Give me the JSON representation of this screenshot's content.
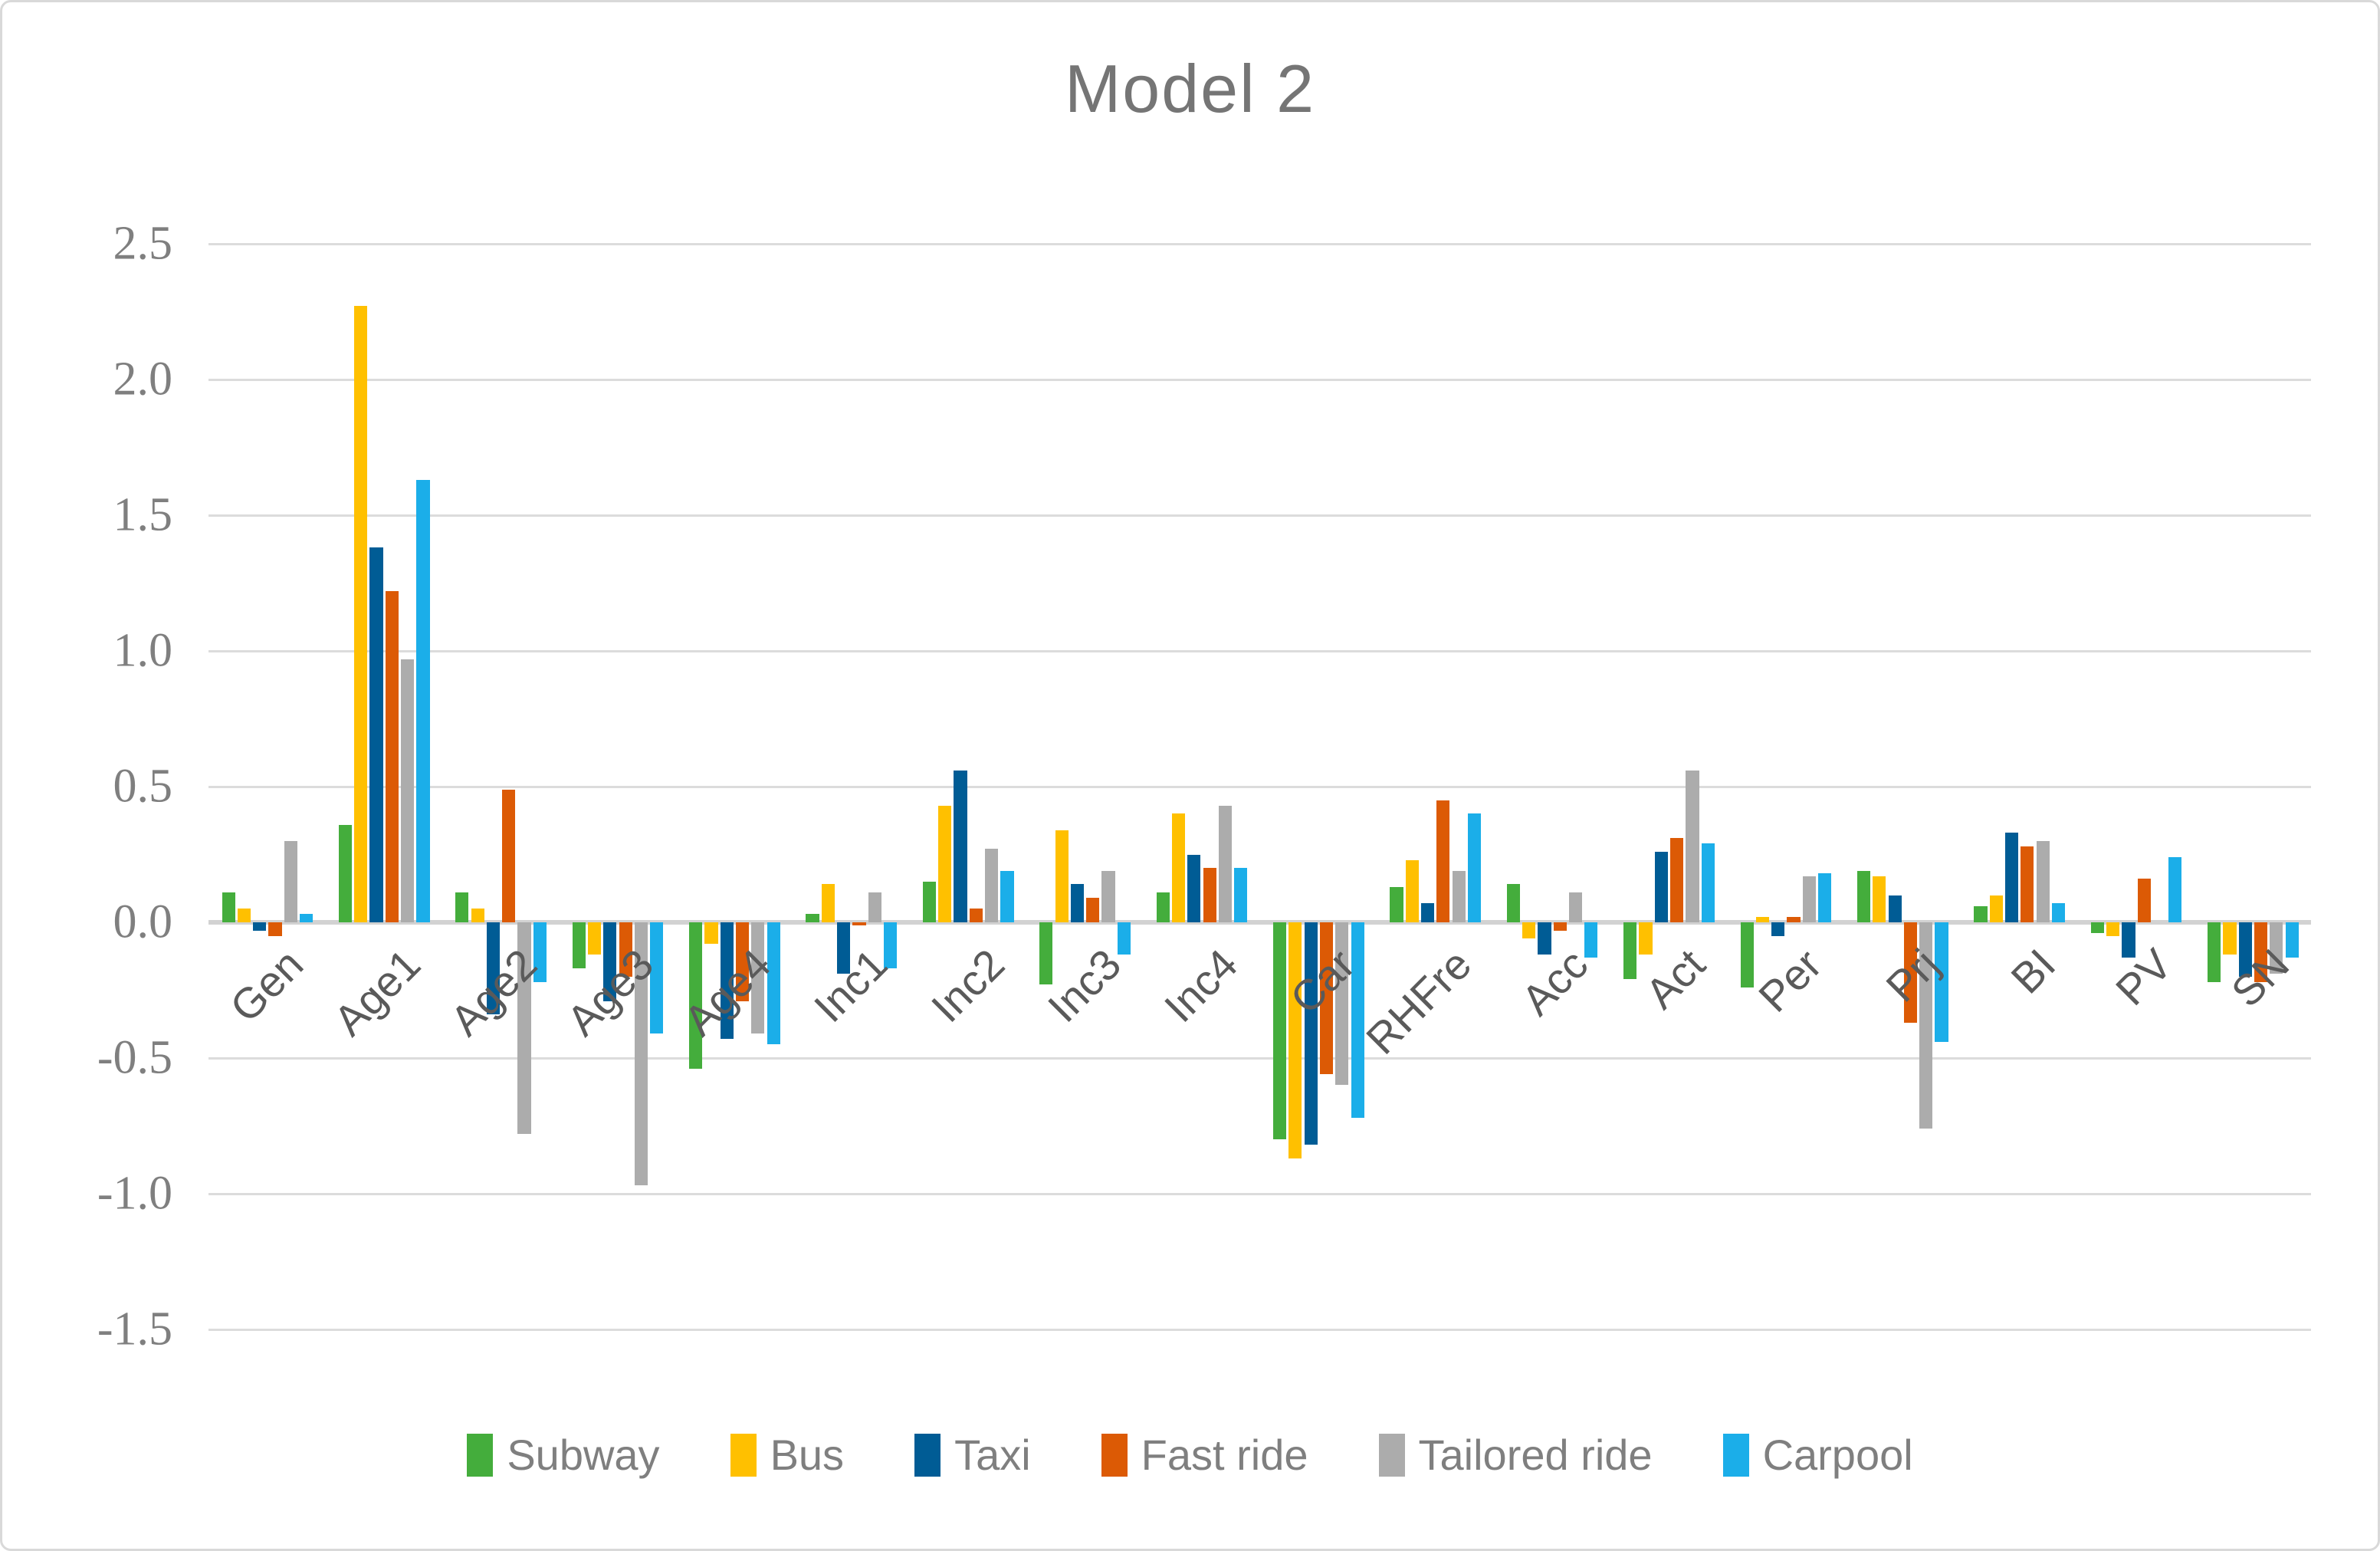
{
  "title": "Model 2",
  "colors": {
    "title_text": "#757575",
    "axis_text": "#7f7f7f",
    "category_text": "#5a5a5a",
    "gridline": "#dcdcdc",
    "zero_line": "#d2d2d2",
    "border": "#d9d9d9",
    "subway_green": "#44ad3c",
    "bus_yellow": "#ffc000",
    "taxi_navy": "#005c95",
    "fast_ride_orange": "#dc5a05",
    "tailored_ride_gray": "#acacac",
    "carpool_blue": "#1baee9"
  },
  "chart_data": {
    "type": "bar",
    "title": "Model 2",
    "xlabel": "",
    "ylabel": "",
    "ylim": [
      -1.5,
      2.5
    ],
    "ytick_step": 0.5,
    "grid": true,
    "legend_position": "bottom",
    "yticks": [
      {
        "label": "2.5",
        "value": 2.5
      },
      {
        "label": "2.0",
        "value": 2.0
      },
      {
        "label": "1.5",
        "value": 1.5
      },
      {
        "label": "1.0",
        "value": 1.0
      },
      {
        "label": "0.5",
        "value": 0.5
      },
      {
        "label": "0.0",
        "value": 0.0
      },
      {
        "label": "-0.5",
        "value": -0.5
      },
      {
        "label": "-1.0",
        "value": -1.0
      },
      {
        "label": "-1.5",
        "value": -1.5
      }
    ],
    "categories": [
      "Gen",
      "Age1",
      "Age2",
      "Age3",
      "Age4",
      "Inc1",
      "Inc2",
      "Inc3",
      "Inc4",
      "Car",
      "RHFre",
      "Acc",
      "Act",
      "Per",
      "Prj",
      "BI",
      "PV",
      "SN"
    ],
    "series": [
      {
        "name": "Subway",
        "color": "#44ad3c",
        "values": [
          0.11,
          0.36,
          0.11,
          -0.17,
          -0.54,
          0.03,
          0.15,
          -0.23,
          0.11,
          -0.8,
          0.13,
          0.14,
          -0.21,
          -0.24,
          0.19,
          0.06,
          -0.04,
          -0.22
        ]
      },
      {
        "name": "Bus",
        "color": "#ffc000",
        "values": [
          0.05,
          2.27,
          0.05,
          -0.12,
          -0.08,
          0.14,
          0.43,
          0.34,
          0.4,
          -0.87,
          0.23,
          -0.06,
          -0.12,
          0.02,
          0.17,
          0.1,
          -0.05,
          -0.12
        ]
      },
      {
        "name": "Taxi",
        "color": "#005c95",
        "values": [
          -0.03,
          1.38,
          -0.34,
          -0.29,
          -0.43,
          -0.19,
          0.56,
          0.14,
          0.25,
          -0.82,
          0.07,
          -0.12,
          0.26,
          -0.05,
          0.1,
          0.33,
          -0.13,
          -0.2
        ]
      },
      {
        "name": "Fast ride",
        "color": "#dc5a05",
        "values": [
          -0.05,
          1.22,
          0.49,
          -0.2,
          -0.29,
          -0.01,
          0.05,
          0.09,
          0.2,
          -0.56,
          0.45,
          -0.03,
          0.31,
          0.02,
          -0.37,
          0.28,
          0.16,
          -0.22
        ]
      },
      {
        "name": "Tailored ride",
        "color": "#acacac",
        "values": [
          0.3,
          0.97,
          -0.78,
          -0.97,
          -0.41,
          0.11,
          0.27,
          0.19,
          0.43,
          -0.6,
          0.19,
          0.11,
          0.56,
          0.17,
          -0.76,
          0.3,
          0.0,
          -0.19
        ]
      },
      {
        "name": "Carpool",
        "color": "#1baee9",
        "values": [
          0.03,
          1.63,
          -0.22,
          -0.41,
          -0.45,
          -0.17,
          0.19,
          -0.12,
          0.2,
          -0.72,
          0.4,
          -0.13,
          0.29,
          0.18,
          -0.44,
          0.07,
          0.24,
          -0.13
        ]
      }
    ]
  }
}
